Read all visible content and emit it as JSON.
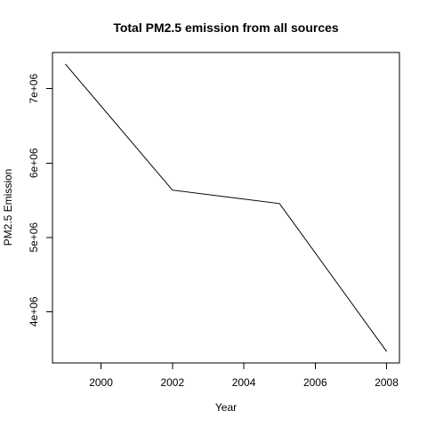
{
  "chart_data": {
    "type": "line",
    "title": "Total PM2.5 emission from all sources",
    "xlabel": "Year",
    "ylabel": "PM2.5 Emission",
    "x": [
      1999,
      2002,
      2005,
      2008
    ],
    "series": [
      {
        "values": [
          7332967,
          5635780,
          5454703,
          3464206
        ]
      }
    ],
    "xlim": [
      1998.64,
      2008.36
    ],
    "ylim": [
      3309736,
      7487437
    ],
    "xticks": [
      {
        "value": 2000,
        "label": "2000"
      },
      {
        "value": 2002,
        "label": "2002"
      },
      {
        "value": 2004,
        "label": "2004"
      },
      {
        "value": 2006,
        "label": "2006"
      },
      {
        "value": 2008,
        "label": "2008"
      }
    ],
    "yticks": [
      {
        "value": 4000000,
        "label": "4e+06"
      },
      {
        "value": 5000000,
        "label": "5e+06"
      },
      {
        "value": 6000000,
        "label": "6e+06"
      },
      {
        "value": 7000000,
        "label": "7e+06"
      }
    ],
    "grid": false,
    "line_color": "#000000",
    "background": "#ffffff"
  }
}
